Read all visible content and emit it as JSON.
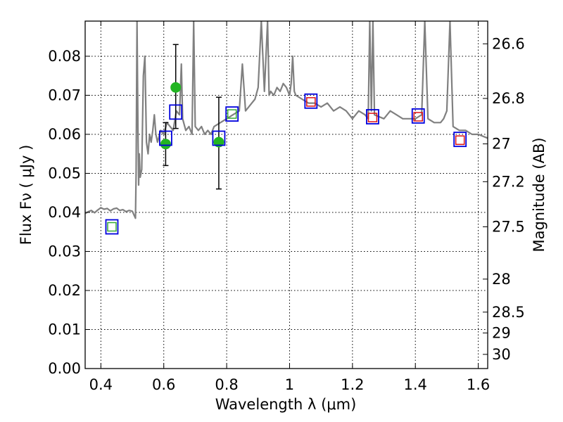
{
  "chart_data": {
    "type": "scatter",
    "title": "",
    "xlabel": "Wavelength  λ (μm)",
    "ylabel": "Flux  Fν  ( μJy )",
    "ylabel_right": "Magnitude (AB)",
    "xlim": [
      0.35,
      1.63
    ],
    "ylim": [
      0.0,
      0.089
    ],
    "grid": true,
    "x_ticks": [
      0.4,
      0.6,
      0.8,
      1.0,
      1.2,
      1.4,
      1.6
    ],
    "x_tick_labels": [
      "0.4",
      "0.6",
      "0.8",
      "1",
      "1.2",
      "1.4",
      "1.6"
    ],
    "y_ticks": [
      0.0,
      0.01,
      0.02,
      0.03,
      0.04,
      0.05,
      0.06,
      0.07,
      0.08
    ],
    "y_tick_labels": [
      "0.00",
      "0.01",
      "0.02",
      "0.03",
      "0.04",
      "0.05",
      "0.06",
      "0.07",
      "0.08"
    ],
    "magnitude_ticks": [
      {
        "mag": 26.6,
        "label": "26.6"
      },
      {
        "mag": 26.8,
        "label": "26.8"
      },
      {
        "mag": 27.0,
        "label": "27"
      },
      {
        "mag": 27.2,
        "label": "27.2"
      },
      {
        "mag": 27.5,
        "label": "27.5"
      },
      {
        "mag": 28.0,
        "label": "28"
      },
      {
        "mag": 28.5,
        "label": "28.5"
      },
      {
        "mag": 29.0,
        "label": "29"
      },
      {
        "mag": 30.0,
        "label": "30"
      }
    ],
    "series": [
      {
        "name": "Model SED spectrum",
        "kind": "line",
        "color": "#808080",
        "x": [
          0.35,
          0.36,
          0.37,
          0.38,
          0.39,
          0.4,
          0.41,
          0.42,
          0.43,
          0.44,
          0.45,
          0.46,
          0.47,
          0.48,
          0.49,
          0.5,
          0.51,
          0.512,
          0.515,
          0.518,
          0.52,
          0.522,
          0.525,
          0.53,
          0.535,
          0.54,
          0.545,
          0.55,
          0.555,
          0.56,
          0.565,
          0.57,
          0.575,
          0.58,
          0.59,
          0.6,
          0.61,
          0.62,
          0.63,
          0.64,
          0.65,
          0.656,
          0.66,
          0.67,
          0.68,
          0.69,
          0.695,
          0.7,
          0.71,
          0.72,
          0.73,
          0.74,
          0.75,
          0.76,
          0.78,
          0.8,
          0.82,
          0.84,
          0.85,
          0.86,
          0.87,
          0.88,
          0.89,
          0.9,
          0.91,
          0.92,
          0.93,
          0.935,
          0.94,
          0.95,
          0.96,
          0.97,
          0.98,
          0.99,
          1.0,
          1.005,
          1.01,
          1.015,
          1.02,
          1.04,
          1.06,
          1.08,
          1.1,
          1.12,
          1.14,
          1.16,
          1.18,
          1.2,
          1.22,
          1.24,
          1.25,
          1.255,
          1.26,
          1.265,
          1.27,
          1.3,
          1.32,
          1.34,
          1.36,
          1.38,
          1.4,
          1.42,
          1.43,
          1.44,
          1.46,
          1.48,
          1.49,
          1.5,
          1.51,
          1.52,
          1.54,
          1.56,
          1.58,
          1.6,
          1.63
        ],
        "y": [
          0.0397,
          0.0402,
          0.0405,
          0.0399,
          0.0406,
          0.0412,
          0.0408,
          0.041,
          0.0404,
          0.0409,
          0.0411,
          0.0405,
          0.0407,
          0.0402,
          0.0405,
          0.0403,
          0.0385,
          0.05,
          0.089,
          0.06,
          0.047,
          0.055,
          0.049,
          0.051,
          0.075,
          0.08,
          0.058,
          0.055,
          0.06,
          0.058,
          0.061,
          0.065,
          0.06,
          0.058,
          0.061,
          0.06,
          0.063,
          0.062,
          0.061,
          0.066,
          0.065,
          0.078,
          0.064,
          0.061,
          0.062,
          0.06,
          0.089,
          0.062,
          0.061,
          0.062,
          0.06,
          0.061,
          0.06,
          0.062,
          0.063,
          0.064,
          0.065,
          0.066,
          0.078,
          0.066,
          0.067,
          0.068,
          0.069,
          0.072,
          0.089,
          0.071,
          0.089,
          0.07,
          0.071,
          0.07,
          0.072,
          0.071,
          0.073,
          0.072,
          0.07,
          0.073,
          0.08,
          0.071,
          0.07,
          0.069,
          0.068,
          0.068,
          0.067,
          0.068,
          0.066,
          0.067,
          0.066,
          0.064,
          0.066,
          0.065,
          0.064,
          0.089,
          0.066,
          0.089,
          0.065,
          0.064,
          0.066,
          0.065,
          0.064,
          0.064,
          0.064,
          0.065,
          0.089,
          0.064,
          0.063,
          0.063,
          0.064,
          0.066,
          0.089,
          0.062,
          0.061,
          0.061,
          0.06,
          0.06,
          0.059
        ]
      },
      {
        "name": "Green measurements",
        "kind": "points_with_errors",
        "color": "#22b522",
        "x": [
          0.606,
          0.638,
          0.775
        ],
        "y": [
          0.0575,
          0.072,
          0.058
        ],
        "yerr_low": [
          0.052,
          0.0615,
          0.046
        ],
        "yerr_high": [
          0.063,
          0.083,
          0.0695
        ]
      },
      {
        "name": "Blue square markers",
        "kind": "open_squares",
        "color": "#0000dd",
        "x": [
          0.435,
          0.606,
          0.638,
          0.775,
          0.817,
          1.068,
          1.264,
          1.409,
          1.542
        ],
        "y": [
          0.0363,
          0.059,
          0.0657,
          0.059,
          0.0652,
          0.0685,
          0.0645,
          0.0647,
          0.0587
        ]
      },
      {
        "name": "Green square markers",
        "kind": "open_squares_small",
        "color": "#33aa33",
        "x": [
          0.435,
          0.817
        ],
        "y": [
          0.0363,
          0.0652
        ]
      },
      {
        "name": "Red square markers",
        "kind": "open_squares_small",
        "color": "#dd1111",
        "x": [
          1.068,
          1.264,
          1.409,
          1.542
        ],
        "y": [
          0.0683,
          0.0643,
          0.0645,
          0.0585
        ]
      }
    ]
  }
}
